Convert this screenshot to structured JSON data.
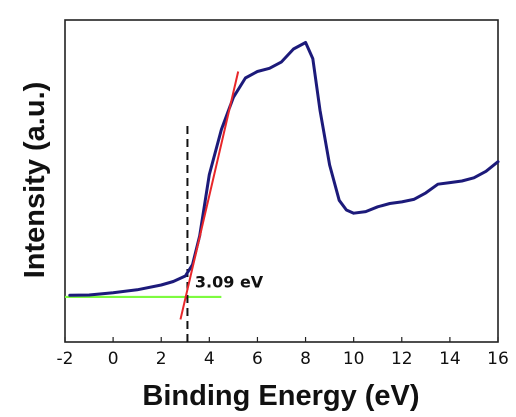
{
  "chart_data": {
    "type": "line",
    "xlabel": "Binding Energy (eV)",
    "ylabel": "Intensity (a.u.)",
    "xlim": [
      -2,
      16
    ],
    "xticks": [
      "-2",
      "0",
      "2",
      "4",
      "6",
      "8",
      "10",
      "12",
      "14",
      "16"
    ],
    "ylim": [
      0,
      100
    ],
    "yticks_shown": false,
    "series": [
      {
        "color": "#1c1a7a",
        "x": [
          -1.8,
          -1,
          0,
          1,
          2,
          2.5,
          3,
          3.3,
          3.6,
          4,
          4.5,
          5,
          5.5,
          6,
          6.5,
          7,
          7.5,
          8,
          8.3,
          8.6,
          9,
          9.4,
          9.7,
          10,
          10.5,
          11,
          11.5,
          12,
          12.5,
          13,
          13.5,
          14,
          14.5,
          15,
          15.5,
          16
        ],
        "y": [
          14.5,
          14.6,
          15.3,
          16.2,
          17.7,
          18.8,
          20.5,
          24,
          33,
          52,
          66,
          76,
          82,
          84,
          85,
          87,
          91,
          93,
          88,
          72,
          55,
          44,
          41,
          40,
          40.5,
          42,
          43,
          43.5,
          44.3,
          46.3,
          49,
          49.5,
          50,
          51,
          53,
          56
        ]
      }
    ],
    "annotations": [
      {
        "type": "tangent",
        "color": "#e8262a",
        "x": [
          2.8,
          5.2
        ],
        "y": [
          7,
          84
        ]
      },
      {
        "type": "baseline",
        "color": "#7dfb3f",
        "x": [
          -2,
          4.5
        ],
        "y": [
          14,
          14
        ]
      },
      {
        "type": "vline",
        "style": "dashed",
        "color": "#111111",
        "x": 3.09,
        "y": [
          0,
          68
        ]
      },
      {
        "type": "text",
        "text": "3.09 eV",
        "x": 3.4,
        "y": 17
      }
    ]
  }
}
